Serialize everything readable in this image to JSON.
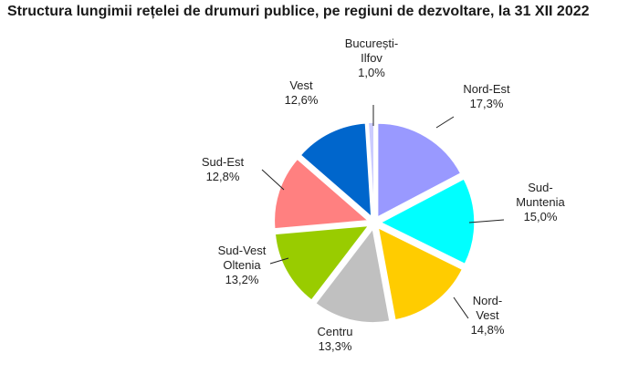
{
  "chart_data": {
    "type": "pie",
    "title": "Structura lungimii rețelei de drumuri publice, pe regiuni de dezvoltare, la 31 XII 2022",
    "unit": "%",
    "legend": "none",
    "exploded": true,
    "slices": [
      {
        "label": [
          "Nord-Est"
        ],
        "value_label": "17,3%",
        "value": 17.3,
        "color": "#9999ff"
      },
      {
        "label": [
          "Sud-",
          "Muntenia"
        ],
        "value_label": "15,0%",
        "value": 15.0,
        "color": "#00ffff"
      },
      {
        "label": [
          "Nord-",
          "Vest"
        ],
        "value_label": "14,8%",
        "value": 14.8,
        "color": "#ffcc00"
      },
      {
        "label": [
          "Centru"
        ],
        "value_label": "13,3%",
        "value": 13.3,
        "color": "#c0c0c0"
      },
      {
        "label": [
          "Sud-Vest",
          "Oltenia"
        ],
        "value_label": "13,2%",
        "value": 13.2,
        "color": "#99cc00"
      },
      {
        "label": [
          "Sud-Est"
        ],
        "value_label": "12,8%",
        "value": 12.8,
        "color": "#ff8080"
      },
      {
        "label": [
          "Vest"
        ],
        "value_label": "12,6%",
        "value": 12.6,
        "color": "#0066cc"
      },
      {
        "label": [
          "București-",
          "Ilfov"
        ],
        "value_label": "1,0%",
        "value": 1.0,
        "color": "#ccccff"
      }
    ]
  }
}
